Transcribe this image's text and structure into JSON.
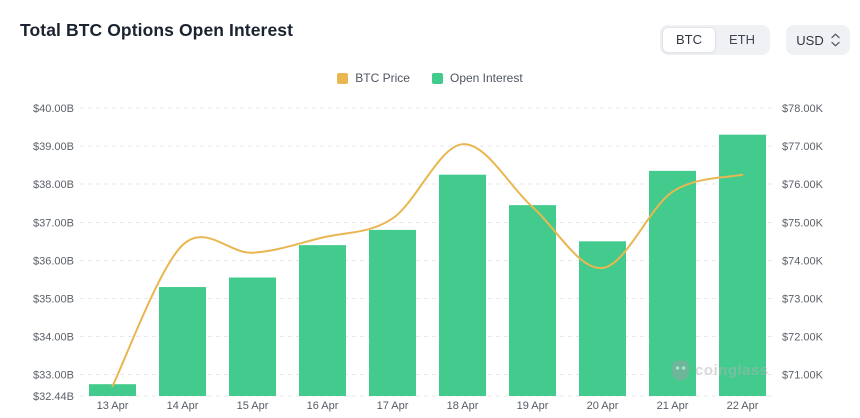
{
  "header": {
    "title": "Total BTC Options Open Interest",
    "asset_toggle": {
      "options": [
        "BTC",
        "ETH"
      ],
      "selected": "BTC"
    },
    "currency_select": {
      "value": "USD"
    }
  },
  "legend": [
    {
      "label": "BTC Price",
      "color": "#e9b751"
    },
    {
      "label": "Open Interest",
      "color": "#42cb8c"
    }
  ],
  "watermark": {
    "text": "coinglass"
  },
  "chart_data": {
    "type": "combo",
    "categories": [
      "13 Apr",
      "14 Apr",
      "15 Apr",
      "16 Apr",
      "17 Apr",
      "18 Apr",
      "19 Apr",
      "20 Apr",
      "21 Apr",
      "22 Apr"
    ],
    "series": [
      {
        "name": "Open Interest",
        "type": "bar",
        "axis": "left",
        "color": "#42cb8c",
        "unit": "USD billions",
        "values": [
          32.75,
          35.3,
          35.55,
          36.4,
          36.8,
          38.25,
          37.45,
          36.5,
          38.35,
          39.3
        ]
      },
      {
        "name": "BTC Price",
        "type": "line",
        "axis": "right",
        "color": "#e9b751",
        "unit": "USD thousands",
        "values": [
          70.7,
          74.4,
          74.2,
          74.6,
          75.1,
          77.05,
          75.4,
          73.8,
          75.8,
          76.25
        ]
      }
    ],
    "left_axis": {
      "min": 32.44,
      "max": 40,
      "ticks": [
        {
          "value": 40,
          "label": "$40.00B"
        },
        {
          "value": 39,
          "label": "$39.00B"
        },
        {
          "value": 38,
          "label": "$38.00B"
        },
        {
          "value": 37,
          "label": "$37.00B"
        },
        {
          "value": 36,
          "label": "$36.00B"
        },
        {
          "value": 35,
          "label": "$35.00B"
        },
        {
          "value": 34,
          "label": "$34.00B"
        },
        {
          "value": 33,
          "label": "$33.00B"
        },
        {
          "value": 32.44,
          "label": "$32.44B"
        }
      ]
    },
    "right_axis": {
      "min": 70.44,
      "max": 78,
      "ticks": [
        {
          "value": 78,
          "label": "$78.00K"
        },
        {
          "value": 77,
          "label": "$77.00K"
        },
        {
          "value": 76,
          "label": "$76.00K"
        },
        {
          "value": 75,
          "label": "$75.00K"
        },
        {
          "value": 74,
          "label": "$74.00K"
        },
        {
          "value": 73,
          "label": "$73.00K"
        },
        {
          "value": 72,
          "label": "$72.00K"
        },
        {
          "value": 71,
          "label": "$71.00K"
        }
      ]
    },
    "grid": {
      "horizontal": true,
      "style": "dashed"
    },
    "legend_position": "top-center"
  },
  "colors": {
    "grid_line": "#e8e9ec",
    "axis_text": "#5b6169",
    "x_axis_text": "#565c66"
  }
}
